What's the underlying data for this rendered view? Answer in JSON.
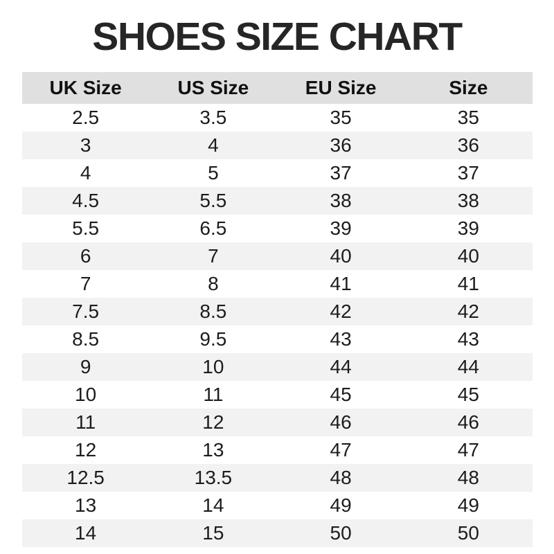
{
  "title": "SHOES SIZE CHART",
  "colors": {
    "header_bg": "#e0e0e0",
    "stripe_bg": "#f2f2f2",
    "text": "#1c1c1c",
    "title": "#262626",
    "page_bg": "#ffffff"
  },
  "table": {
    "columns": [
      "UK Size",
      "US Size",
      "EU Size",
      "Size"
    ],
    "rows": [
      [
        "2.5",
        "3.5",
        "35",
        "35"
      ],
      [
        "3",
        "4",
        "36",
        "36"
      ],
      [
        "4",
        "5",
        "37",
        "37"
      ],
      [
        "4.5",
        "5.5",
        "38",
        "38"
      ],
      [
        "5.5",
        "6.5",
        "39",
        "39"
      ],
      [
        "6",
        "7",
        "40",
        "40"
      ],
      [
        "7",
        "8",
        "41",
        "41"
      ],
      [
        "7.5",
        "8.5",
        "42",
        "42"
      ],
      [
        "8.5",
        "9.5",
        "43",
        "43"
      ],
      [
        "9",
        "10",
        "44",
        "44"
      ],
      [
        "10",
        "11",
        "45",
        "45"
      ],
      [
        "11",
        "12",
        "46",
        "46"
      ],
      [
        "12",
        "13",
        "47",
        "47"
      ],
      [
        "12.5",
        "13.5",
        "48",
        "48"
      ],
      [
        "13",
        "14",
        "49",
        "49"
      ],
      [
        "14",
        "15",
        "50",
        "50"
      ]
    ]
  },
  "chart_data": {
    "type": "table",
    "title": "SHOES SIZE CHART",
    "columns": [
      "UK Size",
      "US Size",
      "EU Size",
      "Size"
    ],
    "rows": [
      [
        "2.5",
        "3.5",
        "35",
        "35"
      ],
      [
        "3",
        "4",
        "36",
        "36"
      ],
      [
        "4",
        "5",
        "37",
        "37"
      ],
      [
        "4.5",
        "5.5",
        "38",
        "38"
      ],
      [
        "5.5",
        "6.5",
        "39",
        "39"
      ],
      [
        "6",
        "7",
        "40",
        "40"
      ],
      [
        "7",
        "8",
        "41",
        "41"
      ],
      [
        "7.5",
        "8.5",
        "42",
        "42"
      ],
      [
        "8.5",
        "9.5",
        "43",
        "43"
      ],
      [
        "9",
        "10",
        "44",
        "44"
      ],
      [
        "10",
        "11",
        "45",
        "45"
      ],
      [
        "11",
        "12",
        "46",
        "46"
      ],
      [
        "12",
        "13",
        "47",
        "47"
      ],
      [
        "12.5",
        "13.5",
        "48",
        "48"
      ],
      [
        "13",
        "14",
        "49",
        "49"
      ],
      [
        "14",
        "15",
        "50",
        "50"
      ]
    ],
    "layout_hints": {
      "header_background": "#e0e0e0",
      "row_striping": "alternating white and #f2f2f2, first data row white",
      "grid": "off",
      "alignment": "center"
    }
  }
}
